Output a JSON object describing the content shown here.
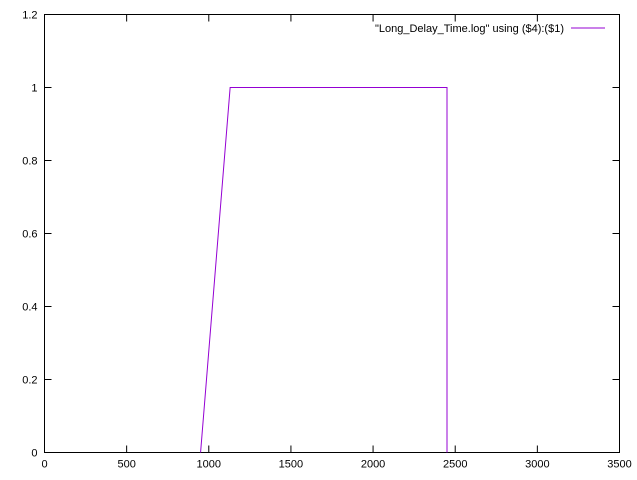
{
  "chart_data": {
    "type": "line",
    "title": "",
    "xlabel": "",
    "ylabel": "",
    "xlim": [
      0,
      3500
    ],
    "ylim": [
      0,
      1.2
    ],
    "xticks": [
      0,
      500,
      1000,
      1500,
      2000,
      2500,
      3000,
      3500
    ],
    "yticks": [
      0,
      0.2,
      0.4,
      0.6,
      0.8,
      1,
      1.2
    ],
    "xtick_labels": [
      "0",
      "500",
      "1000",
      "1500",
      "2000",
      "2500",
      "3000",
      "3500"
    ],
    "ytick_labels": [
      "0",
      "0.2",
      "0.4",
      "0.6",
      "0.8",
      "1",
      "1.2"
    ],
    "grid": false,
    "legend_position": "top-right",
    "series": [
      {
        "name": "\"Long_Delay_Time.log\" using ($4):($1)",
        "color": "#9400d3",
        "points": [
          [
            950,
            0
          ],
          [
            1130,
            1
          ],
          [
            2450,
            1
          ],
          [
            2450,
            0
          ]
        ]
      }
    ]
  }
}
